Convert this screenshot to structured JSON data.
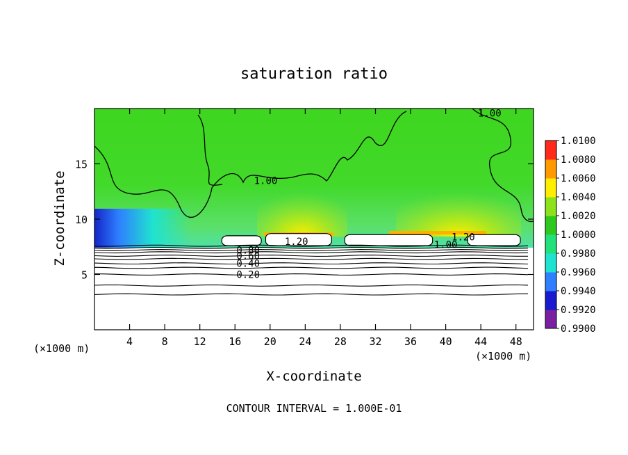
{
  "chart_data": {
    "type": "heatmap",
    "title": "saturation ratio",
    "xlabel": "X-coordinate",
    "ylabel": "Z-coordinate",
    "x_unit": "(×1000 m)",
    "x_unit_right": "(×1000 m)",
    "footer": "CONTOUR INTERVAL = 1.000E-01",
    "xlim": [
      0,
      50
    ],
    "ylim": [
      0,
      20
    ],
    "x_ticks": [
      4,
      8,
      12,
      16,
      20,
      24,
      28,
      32,
      36,
      40,
      44,
      48
    ],
    "y_ticks": [
      5,
      10,
      15
    ],
    "colorbar": {
      "values": [
        "0.9900",
        "0.9920",
        "0.9940",
        "0.9960",
        "0.9980",
        "1.0000",
        "1.0020",
        "1.0040",
        "1.0060",
        "1.0080",
        "1.0100"
      ],
      "colors": [
        "#7a1fa2",
        "#1a1acf",
        "#2f7fff",
        "#1fe3d0",
        "#22e07a",
        "#2fc81f",
        "#8de21b",
        "#ffee00",
        "#ff9900",
        "#ff2a1a",
        "#ff8a8a"
      ]
    },
    "contours": [
      {
        "label": "0.20",
        "z": 5.0
      },
      {
        "label": "0.40",
        "z": 6.0
      },
      {
        "label": "0.60",
        "z": 6.7
      },
      {
        "label": "0.80",
        "z": 7.2
      },
      {
        "label": "1.00",
        "z": 13.5
      },
      {
        "label": "1.00",
        "z": 19.6
      },
      {
        "label": "1.20",
        "z": 8.0
      },
      {
        "label": "1.20",
        "z": 8.4
      },
      {
        "label": "1.00",
        "z": 7.7
      }
    ],
    "saturated_cloud_regions": [
      {
        "x": [
          19.5,
          27.0
        ],
        "z": [
          7.6,
          8.7
        ]
      },
      {
        "x": [
          28.5,
          38.5
        ],
        "z": [
          7.6,
          8.6
        ]
      },
      {
        "x": [
          42.5,
          48.5
        ],
        "z": [
          7.6,
          8.6
        ]
      },
      {
        "x": [
          14.5,
          19.0
        ],
        "z": [
          7.6,
          8.5
        ]
      }
    ]
  }
}
